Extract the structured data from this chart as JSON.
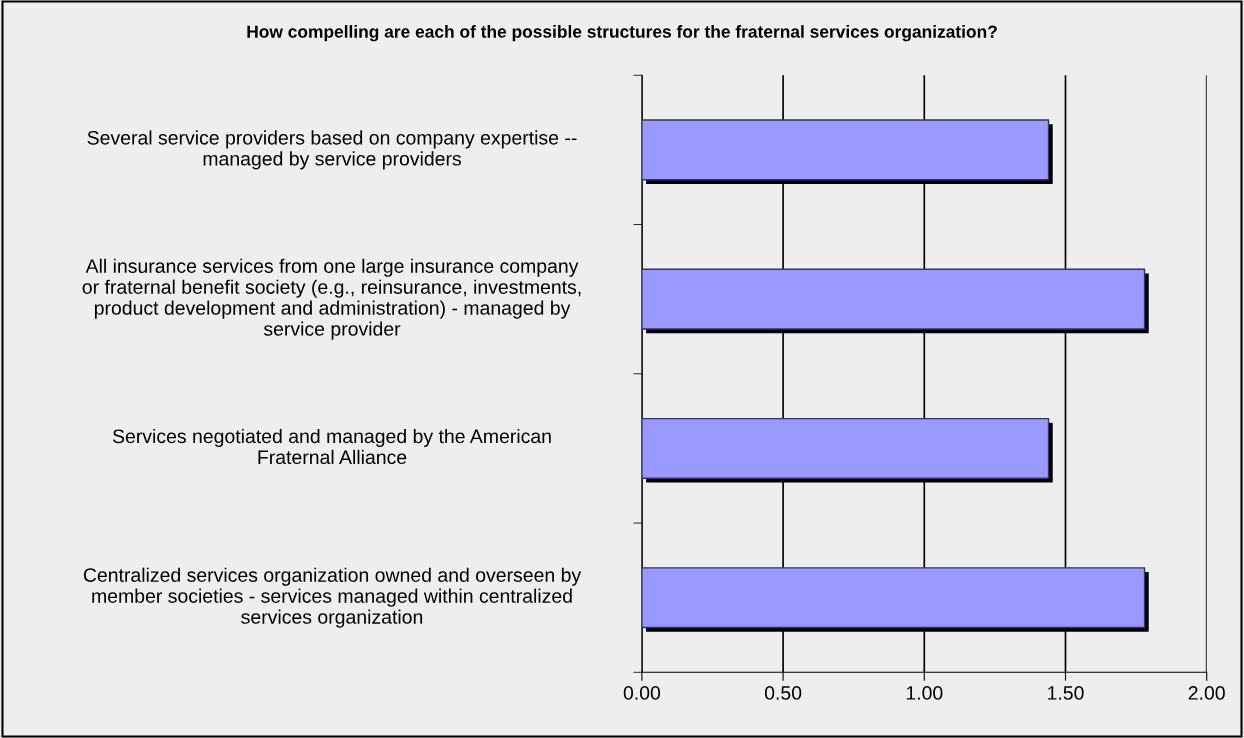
{
  "chart_data": {
    "type": "bar",
    "orientation": "horizontal",
    "title": "How compelling are each of the possible structures for the fraternal services organization?",
    "categories": [
      "Several service providers based on company expertise --\nmanaged by service providers",
      "All insurance services from one large insurance company\nor fraternal benefit society (e.g., reinsurance, investments,\nproduct development and administration) - managed by\nservice provider",
      "Services negotiated and managed by the American\nFraternal Alliance",
      "Centralized services organization owned and overseen by\nmember societies - services managed within centralized\nservices organization"
    ],
    "values": [
      1.44,
      1.78,
      1.44,
      1.78
    ],
    "color": "#9999ff",
    "xlim": [
      0,
      2
    ],
    "xticks": [
      {
        "value": 0,
        "label": "0.00"
      },
      {
        "value": 0.5,
        "label": "0.50"
      },
      {
        "value": 1,
        "label": "1.00"
      },
      {
        "value": 1.5,
        "label": "1.50"
      },
      {
        "value": 2,
        "label": "2.00"
      }
    ],
    "grid": "x",
    "legend": false
  }
}
